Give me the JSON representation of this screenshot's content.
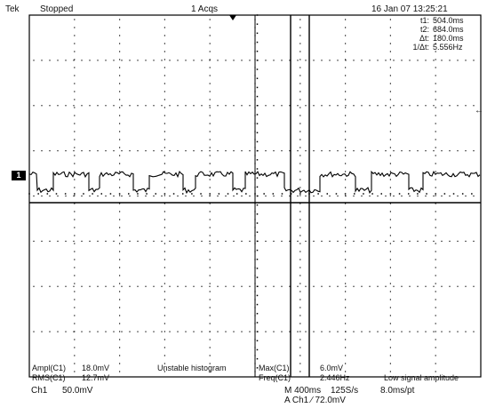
{
  "status_bar": {
    "brand": "Tek",
    "run_state": "Stopped",
    "acquisitions": "1 Acqs",
    "datetime": "16 Jan 07 13:25:21"
  },
  "cursor_readout": {
    "t1_label": "t1:",
    "t1_value": "504.0ms",
    "t2_label": "t2:",
    "t2_value": "684.0ms",
    "delta_label": "Δt:",
    "delta_value": "180.0ms",
    "inv_label": "1/Δt:",
    "inv_value": "5.556Hz"
  },
  "channel_marker": {
    "label": "1"
  },
  "trigger_marker": {
    "symbol": "←"
  },
  "measurements": [
    {
      "label": "Ampl(C1)",
      "value": "18.0mV",
      "note": "Unstable histogram"
    },
    {
      "label": "RMS(C1)",
      "value": "12.7mV",
      "note": ""
    },
    {
      "label": "Max(C1)",
      "value": "6.0mV",
      "note": ""
    },
    {
      "label": "Freq(C1)",
      "value": "2.446Hz",
      "note": "Low signal amplitude"
    }
  ],
  "footer": {
    "channel": "Ch1",
    "volts_per_div": "50.0mV",
    "timebase": "M 400ms",
    "sample_rate": "125S/s",
    "record": "8.0ms/pt",
    "trigger": "A  Ch1  ∕  72.0mV"
  },
  "colors": {
    "trace": "#000000",
    "graticule": "#000000",
    "background": "#ffffff"
  }
}
